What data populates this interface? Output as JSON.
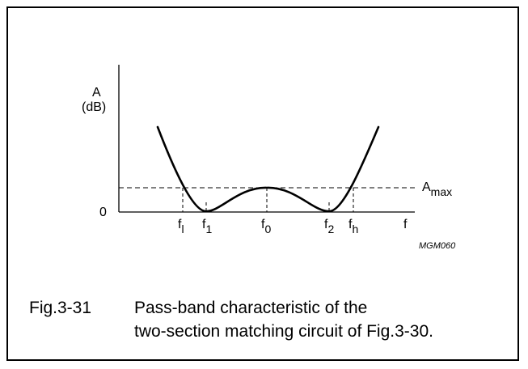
{
  "diagram": {
    "y_label_line1": "A",
    "y_label_line2": "(dB)",
    "y_zero": "0",
    "x_axis_label": "f",
    "amax_base": "A",
    "amax_sub": "max",
    "freq_labels": [
      {
        "base": "f",
        "sub": "l"
      },
      {
        "base": "f",
        "sub": "1"
      },
      {
        "base": "f",
        "sub": "0"
      },
      {
        "base": "f",
        "sub": "2"
      },
      {
        "base": "f",
        "sub": "h"
      }
    ],
    "code": "MGM060"
  },
  "caption": {
    "number": "Fig.3-31",
    "line1": "Pass-band characteristic of the",
    "line2": "two-section matching circuit of Fig.3-30."
  }
}
